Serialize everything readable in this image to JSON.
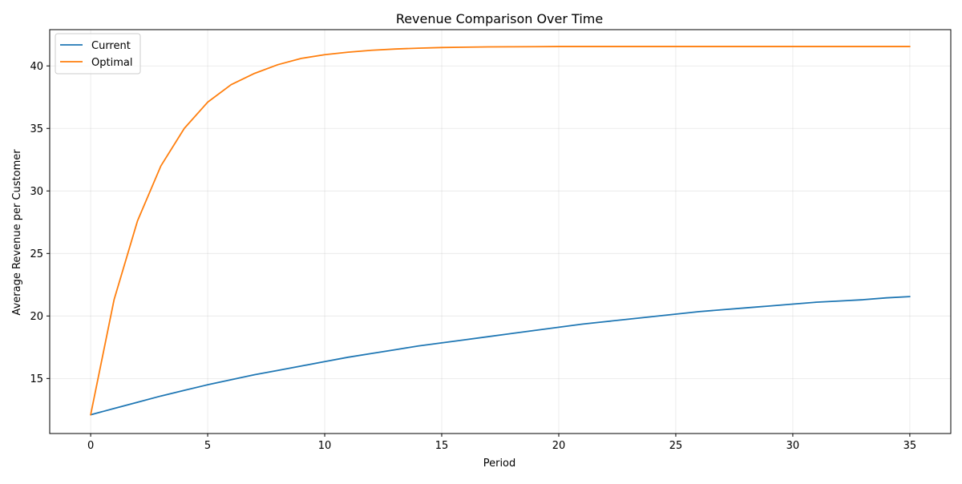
{
  "chart_data": {
    "type": "line",
    "title": "Revenue Comparison Over Time",
    "xlabel": "Period",
    "ylabel": "Average Revenue per Customer",
    "xlim": [
      -1.75,
      36.75
    ],
    "ylim": [
      10.6,
      42.9
    ],
    "xticks": [
      0,
      5,
      10,
      15,
      20,
      25,
      30,
      35
    ],
    "yticks": [
      15,
      20,
      25,
      30,
      35,
      40
    ],
    "grid": true,
    "legend_position": "top-left",
    "x": [
      0,
      1,
      2,
      3,
      4,
      5,
      6,
      7,
      8,
      9,
      10,
      11,
      12,
      13,
      14,
      15,
      16,
      17,
      18,
      19,
      20,
      21,
      22,
      23,
      24,
      25,
      26,
      27,
      28,
      29,
      30,
      31,
      32,
      33,
      34,
      35
    ],
    "series": [
      {
        "name": "Current",
        "color": "#1f77b4",
        "values": [
          12.1,
          12.6,
          13.1,
          13.6,
          14.05,
          14.5,
          14.9,
          15.3,
          15.65,
          16.0,
          16.35,
          16.7,
          17.0,
          17.3,
          17.6,
          17.85,
          18.1,
          18.35,
          18.6,
          18.85,
          19.1,
          19.35,
          19.55,
          19.75,
          19.95,
          20.15,
          20.35,
          20.5,
          20.65,
          20.8,
          20.95,
          21.1,
          21.2,
          21.3,
          21.45,
          21.55
        ]
      },
      {
        "name": "Optimal",
        "color": "#ff7f0e",
        "values": [
          12.1,
          21.3,
          27.6,
          32.0,
          35.0,
          37.1,
          38.5,
          39.4,
          40.1,
          40.6,
          40.9,
          41.1,
          41.25,
          41.35,
          41.42,
          41.47,
          41.5,
          41.52,
          41.53,
          41.54,
          41.55,
          41.55,
          41.55,
          41.55,
          41.55,
          41.55,
          41.55,
          41.55,
          41.55,
          41.55,
          41.55,
          41.55,
          41.55,
          41.55,
          41.55,
          41.55
        ]
      }
    ]
  }
}
